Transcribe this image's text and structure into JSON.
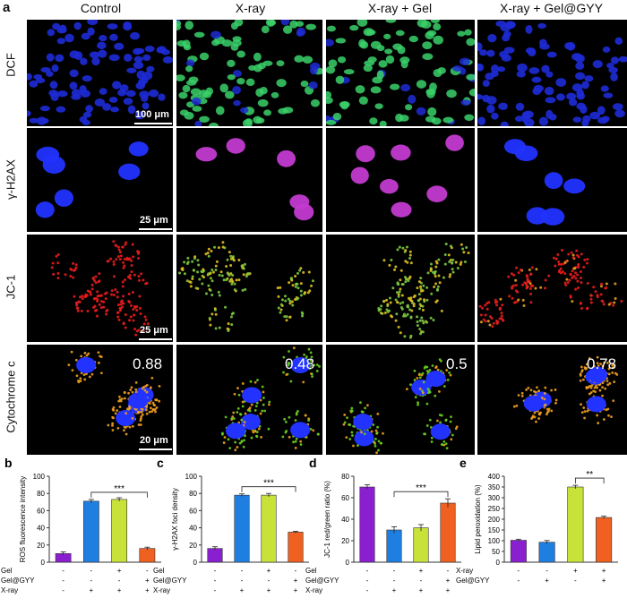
{
  "figure_panel_a": "a",
  "column_headers": [
    "Control",
    "X-ray",
    "X-ray + Gel",
    "X-ray + Gel@GYY"
  ],
  "row_labels": [
    "DCF",
    "γ-H2AX",
    "JC-1",
    "Cytochrome c"
  ],
  "scale_bars": [
    "100 μm",
    "25 μm",
    "25 μm",
    "20 μm"
  ],
  "cytochrome_values": [
    "0.88",
    "0.48",
    "0.5",
    "0.78"
  ],
  "colors": {
    "dcf_blue": "#1e2bd6",
    "dcf_green": "#39d16a",
    "nucleus": "#2233ff",
    "h2ax_pink": "#c23bd0",
    "jc1_red": "#e51c1c",
    "jc1_green": "#7ac943",
    "cyto_orange": "#f0a020",
    "cyto_green": "#6ad020",
    "bar_purple": "#8a1fd0",
    "bar_blue": "#1f7fe0",
    "bar_yellow": "#c8e23a",
    "bar_orange": "#f06020"
  },
  "condition_rows": {
    "gel": [
      "-",
      "-",
      "+",
      "-"
    ],
    "gelgyy": [
      "-",
      "-",
      "-",
      "+"
    ],
    "xray": [
      "-",
      "+",
      "+",
      "+"
    ],
    "xray_e": [
      "-",
      "-",
      "+",
      "+"
    ],
    "gelgyy_e": [
      "-",
      "+",
      "-",
      "+"
    ],
    "labels": {
      "gel": "Gel",
      "gelgyy": "Gel@GYY",
      "xray": "X-ray"
    }
  },
  "chart_data": [
    {
      "panel": "b",
      "type": "bar",
      "ylabel": "ROS fluorescence intensity",
      "ylim": [
        0,
        100
      ],
      "yticks": [
        0,
        20,
        40,
        60,
        80,
        100
      ],
      "values": [
        10,
        71,
        73,
        16
      ],
      "errors": [
        2,
        2,
        2,
        1.5
      ],
      "significance": "***",
      "sig_between": [
        1,
        3
      ]
    },
    {
      "panel": "c",
      "type": "bar",
      "ylabel": "γ-H2AX foci density",
      "ylim": [
        0,
        100
      ],
      "yticks": [
        0,
        20,
        40,
        60,
        80,
        100
      ],
      "values": [
        16,
        78,
        78,
        35
      ],
      "errors": [
        2,
        1.5,
        2,
        1
      ],
      "significance": "***",
      "sig_between": [
        1,
        3
      ]
    },
    {
      "panel": "d",
      "type": "bar",
      "ylabel": "JC-1 red/green ratio (%)",
      "ylim": [
        0,
        80
      ],
      "yticks": [
        0,
        20,
        40,
        60,
        80
      ],
      "values": [
        70,
        30,
        32,
        55
      ],
      "errors": [
        2,
        3,
        3,
        4
      ],
      "significance": "***",
      "sig_between": [
        1,
        3
      ]
    },
    {
      "panel": "e",
      "type": "bar",
      "ylabel": "Lipid peroxidation (%)",
      "ylim": [
        0,
        400
      ],
      "yticks": [
        0,
        50,
        100,
        150,
        200,
        250,
        300,
        350,
        400
      ],
      "values": [
        102,
        93,
        350,
        208
      ],
      "errors": [
        5,
        8,
        8,
        6
      ],
      "significance": "**",
      "sig_between": [
        2,
        3
      ]
    }
  ]
}
